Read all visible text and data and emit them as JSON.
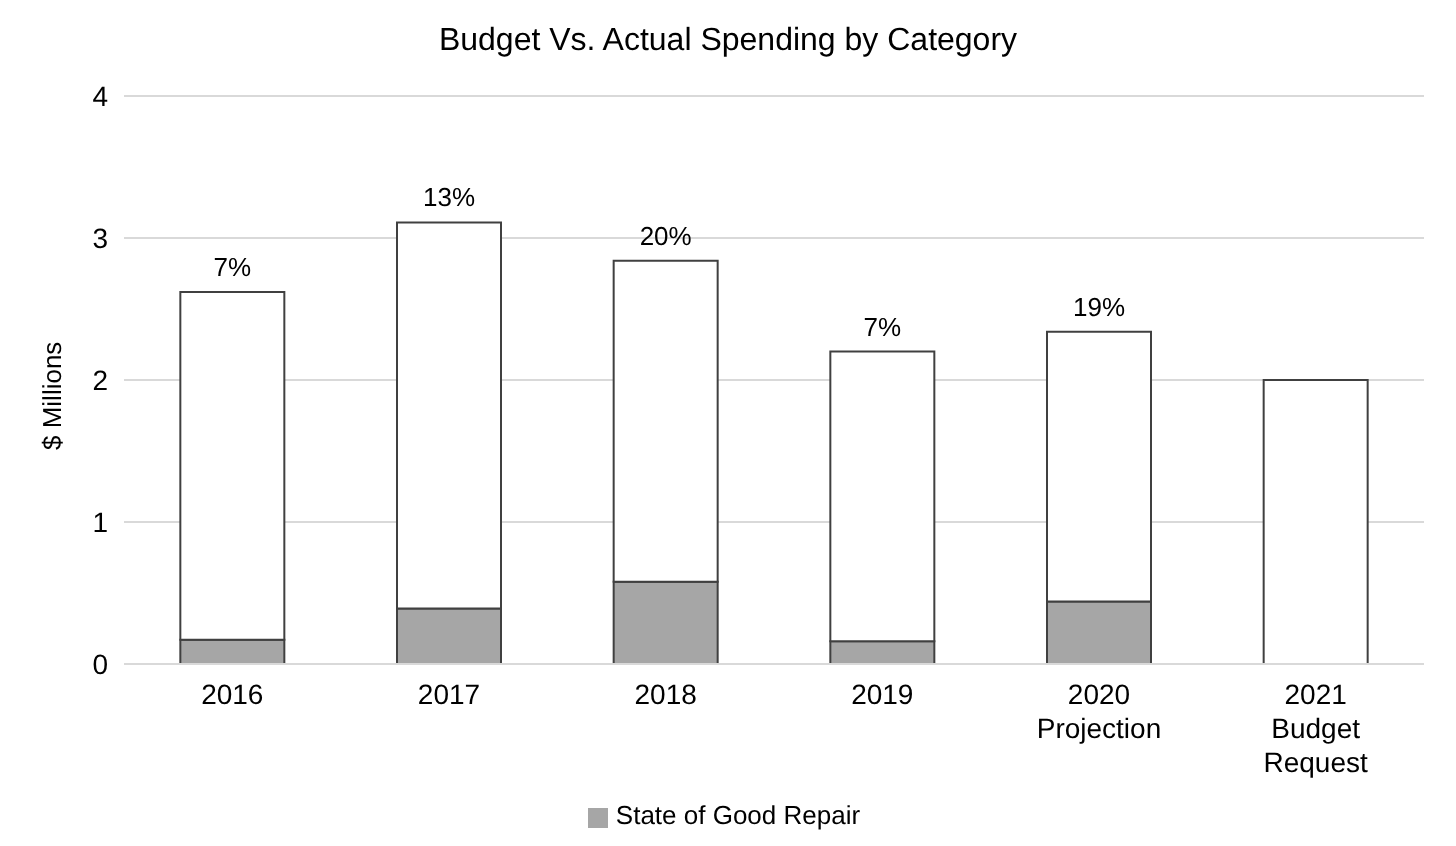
{
  "chart_data": {
    "type": "bar",
    "title": "Budget Vs. Actual Spending by Category",
    "ylabel": "$ Millions",
    "categories": [
      "2016",
      "2017",
      "2018",
      "2019",
      "2020\nProjection",
      "2021\nBudget\nRequest"
    ],
    "stacked": true,
    "series": [
      {
        "name": "State of Good Repair",
        "color": "#a6a6a6",
        "values": [
          0.17,
          0.39,
          0.58,
          0.16,
          0.44,
          0
        ]
      },
      {
        "color": "#ffffff",
        "values": [
          2.45,
          2.72,
          2.26,
          2.04,
          1.9,
          2.0
        ]
      }
    ],
    "annotations": [
      {
        "text": "7%",
        "x": "2016",
        "y": 2.62
      },
      {
        "text": "13%",
        "x": "2017",
        "y": 3.11
      },
      {
        "text": "20%",
        "x": "2018",
        "y": 2.84
      },
      {
        "text": "7%",
        "x": "2019",
        "y": 2.2
      },
      {
        "text": "19%",
        "x": "2020\nProjection",
        "y": 2.34
      }
    ],
    "ylim": [
      0,
      4
    ],
    "yticks": [
      0,
      1,
      2,
      3,
      4
    ],
    "grid": "y",
    "legend": "bottom"
  }
}
